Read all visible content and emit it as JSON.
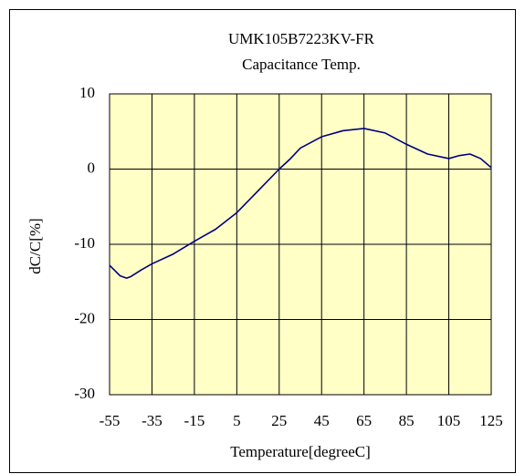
{
  "chart_data": {
    "type": "line",
    "title": "UMK105B7223KV-FR",
    "subtitle": "Capacitance Temp.",
    "xlabel": "Temperature[degreeC]",
    "ylabel": "dC/C[%]",
    "x": [
      -55,
      -50,
      -47,
      -45,
      -40,
      -35,
      -25,
      -15,
      -5,
      5,
      15,
      25,
      30,
      35,
      45,
      55,
      65,
      75,
      85,
      95,
      105,
      110,
      115,
      120,
      125
    ],
    "values": [
      -12.8,
      -14.2,
      -14.5,
      -14.3,
      -13.4,
      -12.6,
      -11.3,
      -9.6,
      -8.0,
      -5.8,
      -2.9,
      0,
      1.3,
      2.8,
      4.3,
      5.1,
      5.4,
      4.8,
      3.3,
      2.0,
      1.4,
      1.8,
      2.0,
      1.4,
      0.2
    ],
    "color": "#000080",
    "background": "#ffffc6",
    "xlim": [
      -55,
      125
    ],
    "xticks": [
      -55,
      -35,
      -15,
      5,
      25,
      45,
      65,
      85,
      105,
      125
    ],
    "ylim": [
      -30,
      10
    ],
    "yticks": [
      -30,
      -20,
      -10,
      0,
      10
    ],
    "grid": true
  }
}
